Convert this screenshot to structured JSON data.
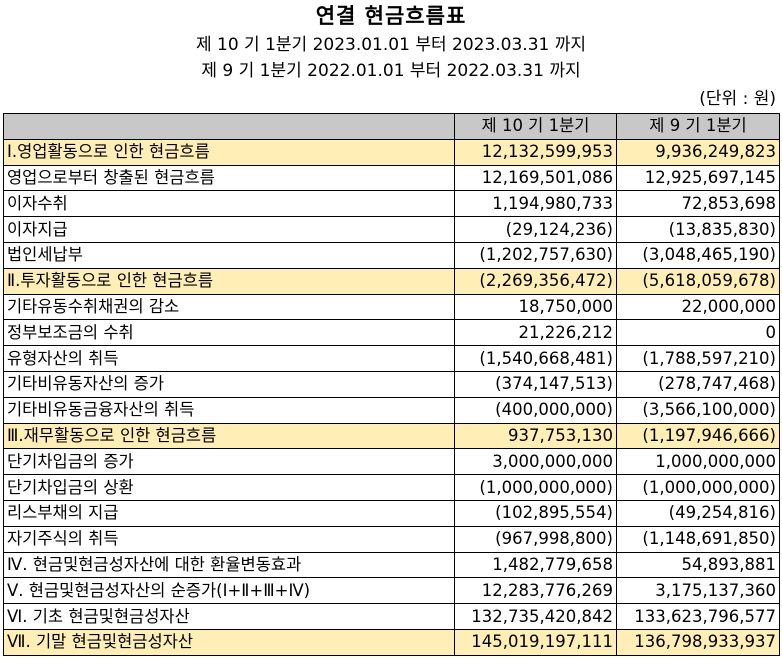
{
  "header": {
    "title": "연결 현금흐름표",
    "period_current": "제 10 기 1분기 2023.01.01 부터 2023.03.31 까지",
    "period_prior": "제 9 기 1분기 2022.01.01 부터 2022.03.31 까지",
    "unit": "(단위 : 원)"
  },
  "table": {
    "columns": [
      "",
      "제 10 기 1분기",
      "제 9 기 1분기"
    ],
    "rows": [
      {
        "label": "Ⅰ.영업활동으로 인한 현금흐름",
        "current": "12,132,599,953",
        "prior": "9,936,249,823",
        "level": "section",
        "highlight": true
      },
      {
        "label": "영업으로부터 창출된 현금흐름",
        "current": "12,169,501,086",
        "prior": "12,925,697,145",
        "level": "item",
        "highlight": false
      },
      {
        "label": "이자수취",
        "current": "1,194,980,733",
        "prior": "72,853,698",
        "level": "item",
        "highlight": false
      },
      {
        "label": "이자지급",
        "current": "(29,124,236)",
        "prior": "(13,835,830)",
        "level": "item",
        "highlight": false
      },
      {
        "label": "법인세납부",
        "current": "(1,202,757,630)",
        "prior": "(3,048,465,190)",
        "level": "item",
        "highlight": false
      },
      {
        "label": "Ⅱ.투자활동으로 인한 현금흐름",
        "current": "(2,269,356,472)",
        "prior": "(5,618,059,678)",
        "level": "section",
        "highlight": true
      },
      {
        "label": "기타유동수취채권의 감소",
        "current": "18,750,000",
        "prior": "22,000,000",
        "level": "item",
        "highlight": false
      },
      {
        "label": "정부보조금의 수취",
        "current": "21,226,212",
        "prior": "0",
        "level": "item",
        "highlight": false
      },
      {
        "label": "유형자산의 취득",
        "current": "(1,540,668,481)",
        "prior": "(1,788,597,210)",
        "level": "item",
        "highlight": false
      },
      {
        "label": "기타비유동자산의 증가",
        "current": "(374,147,513)",
        "prior": "(278,747,468)",
        "level": "item",
        "highlight": false
      },
      {
        "label": "기타비유동금융자산의 취득",
        "current": "(400,000,000)",
        "prior": "(3,566,100,000)",
        "level": "item",
        "highlight": false
      },
      {
        "label": "Ⅲ.재무활동으로 인한 현금흐름",
        "current": "937,753,130",
        "prior": "(1,197,946,666)",
        "level": "section",
        "highlight": true
      },
      {
        "label": "단기차입금의 증가",
        "current": "3,000,000,000",
        "prior": "1,000,000,000",
        "level": "item",
        "highlight": false
      },
      {
        "label": "단기차입금의 상환",
        "current": "(1,000,000,000)",
        "prior": "(1,000,000,000)",
        "level": "item",
        "highlight": false
      },
      {
        "label": "리스부채의 지급",
        "current": "(102,895,554)",
        "prior": "(49,254,816)",
        "level": "item",
        "highlight": false
      },
      {
        "label": "자기주식의 취득",
        "current": "(967,998,800)",
        "prior": "(1,148,691,850)",
        "level": "item",
        "highlight": false
      },
      {
        "label": "Ⅳ. 현금및현금성자산에 대한 환율변동효과",
        "current": "1,482,779,658",
        "prior": "54,893,881",
        "level": "section",
        "highlight": false
      },
      {
        "label": "Ⅴ. 현금및현금성자산의 순증가(Ⅰ+Ⅱ+Ⅲ+Ⅳ)",
        "current": "12,283,776,269",
        "prior": "3,175,137,360",
        "level": "section",
        "highlight": false
      },
      {
        "label": "Ⅵ. 기초 현금및현금성자산",
        "current": "132,735,420,842",
        "prior": "133,623,796,577",
        "level": "section",
        "highlight": false
      },
      {
        "label": "Ⅶ. 기말 현금및현금성자산",
        "current": "145,019,197,111",
        "prior": "136,798,933,937",
        "level": "section",
        "highlight": true
      }
    ]
  }
}
